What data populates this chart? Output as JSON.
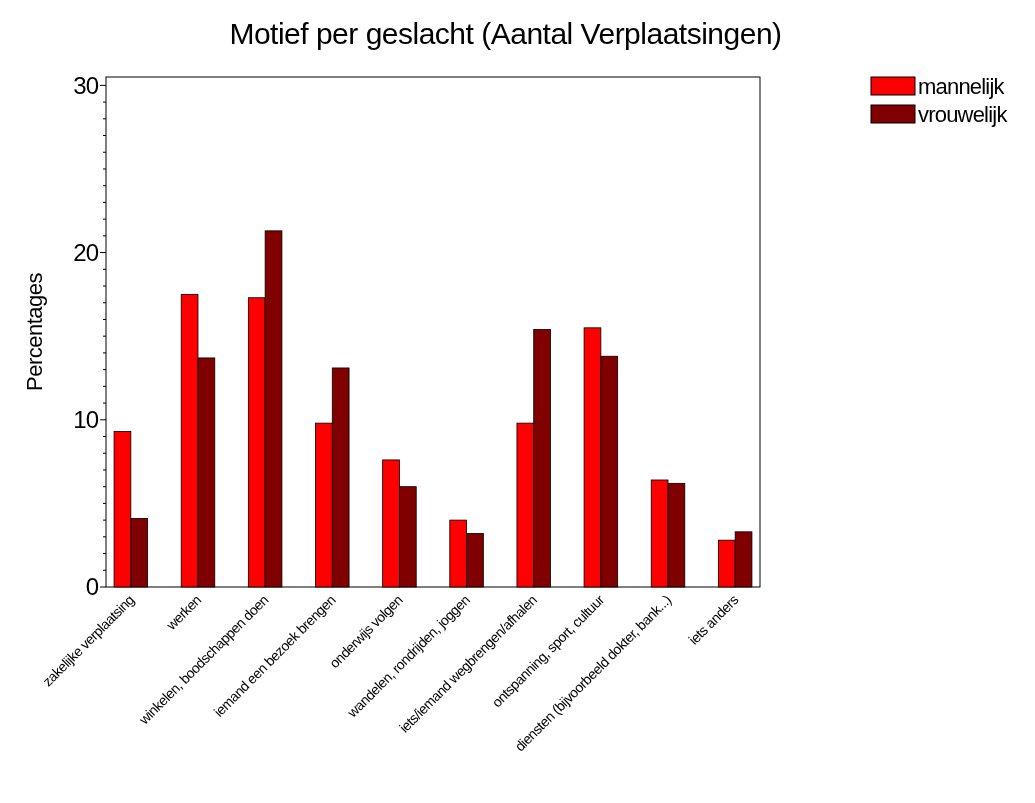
{
  "chart_data": {
    "type": "bar",
    "title": "Motief per geslacht (Aantal Verplaatsingen)",
    "ylabel": "Percentages",
    "categories": [
      "zakelijke verplaatsing",
      "werken",
      "winkelen, boodschappen doen",
      "iemand een bezoek brengen",
      "onderwijs volgen",
      "wandelen, rondrijden, joggen",
      "iets/iemand wegbrengen/afhalen",
      "ontspanning, sport, cultuur",
      "diensten (bijvoorbeeld dokter, bank...)",
      "iets anders"
    ],
    "series": [
      {
        "name": "mannelijk",
        "color": "#ff0000",
        "values": [
          9.3,
          17.5,
          17.3,
          9.8,
          7.6,
          4.0,
          9.8,
          15.5,
          6.4,
          2.8
        ]
      },
      {
        "name": "vrouwelijk",
        "color": "#800000",
        "values": [
          4.1,
          13.7,
          21.3,
          13.1,
          6.0,
          3.2,
          15.4,
          13.8,
          6.2,
          3.3
        ]
      }
    ],
    "ylim": [
      0,
      30.5
    ],
    "yticks": [
      0,
      {
        "value": 1,
        "label": null
      },
      {
        "value": 2,
        "label": null
      },
      {
        "value": 3,
        "label": null
      },
      {
        "value": 4,
        "label": null
      },
      {
        "value": 5,
        "label": null
      },
      {
        "value": 6,
        "label": null
      },
      {
        "value": 7,
        "label": null
      },
      {
        "value": 8,
        "label": null
      },
      {
        "value": 9,
        "label": null
      },
      10,
      {
        "value": 11,
        "label": null
      },
      {
        "value": 12,
        "label": null
      },
      {
        "value": 13,
        "label": null
      },
      {
        "value": 14,
        "label": null
      },
      {
        "value": 15,
        "label": null
      },
      {
        "value": 16,
        "label": null
      },
      {
        "value": 17,
        "label": null
      },
      {
        "value": 18,
        "label": null
      },
      {
        "value": 19,
        "label": null
      },
      20,
      {
        "value": 21,
        "label": null
      },
      {
        "value": 22,
        "label": null
      },
      {
        "value": 23,
        "label": null
      },
      {
        "value": 24,
        "label": null
      },
      {
        "value": 25,
        "label": null
      },
      {
        "value": 26,
        "label": null
      },
      {
        "value": 27,
        "label": null
      },
      {
        "value": 28,
        "label": null
      },
      {
        "value": 29,
        "label": null
      },
      30
    ],
    "grid": false,
    "legend": "top right"
  }
}
